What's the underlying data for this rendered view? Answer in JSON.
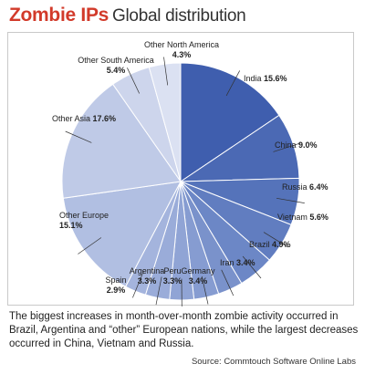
{
  "header": {
    "title_bold": "Zombie IPs",
    "title_rest": "Global distribution"
  },
  "caption": "The biggest increases in month-over-month zombie activity occurred in Brazil, Argentina and “other” European nations, while the largest decreases occurred in China, Vietnam and Russia.",
  "source": "Source: Commtouch Software Online Labs",
  "chart_data": {
    "type": "pie",
    "title": "Zombie IPs Global distribution",
    "unit": "%",
    "start_angle": "12 o'clock",
    "direction": "clockwise",
    "slices": [
      {
        "label": "India",
        "value": 15.6,
        "display": "15.6%",
        "color": "#3f5eae"
      },
      {
        "label": "China",
        "value": 9.0,
        "display": "9.0%",
        "color": "#4b69b4"
      },
      {
        "label": "Russia",
        "value": 6.4,
        "display": "6.4%",
        "color": "#5573ba"
      },
      {
        "label": "Vietnam",
        "value": 5.6,
        "display": "5.6%",
        "color": "#617dc0"
      },
      {
        "label": "Brazil",
        "value": 4.9,
        "display": "4.9%",
        "color": "#6c87c6"
      },
      {
        "label": "Iran",
        "value": 3.4,
        "display": "3.4%",
        "color": "#7a92cb"
      },
      {
        "label": "Germany",
        "value": 3.4,
        "display": "3.4%",
        "color": "#869cd1"
      },
      {
        "label": "Peru",
        "value": 3.3,
        "display": "3.3%",
        "color": "#90a4d5"
      },
      {
        "label": "Argentina",
        "value": 3.3,
        "display": "3.3%",
        "color": "#9aacd9"
      },
      {
        "label": "Spain",
        "value": 2.9,
        "display": "2.9%",
        "color": "#a4b4dd"
      },
      {
        "label": "Other Europe",
        "value": 15.1,
        "display": "15.1%",
        "color": "#b1bfe2"
      },
      {
        "label": "Other Asia",
        "value": 17.6,
        "display": "17.6%",
        "color": "#bfcae7"
      },
      {
        "label": "Other South America",
        "value": 5.4,
        "display": "5.4%",
        "color": "#cdd5ec"
      },
      {
        "label": "Other North America",
        "value": 4.3,
        "display": "4.3%",
        "color": "#dbe1f2"
      }
    ]
  }
}
